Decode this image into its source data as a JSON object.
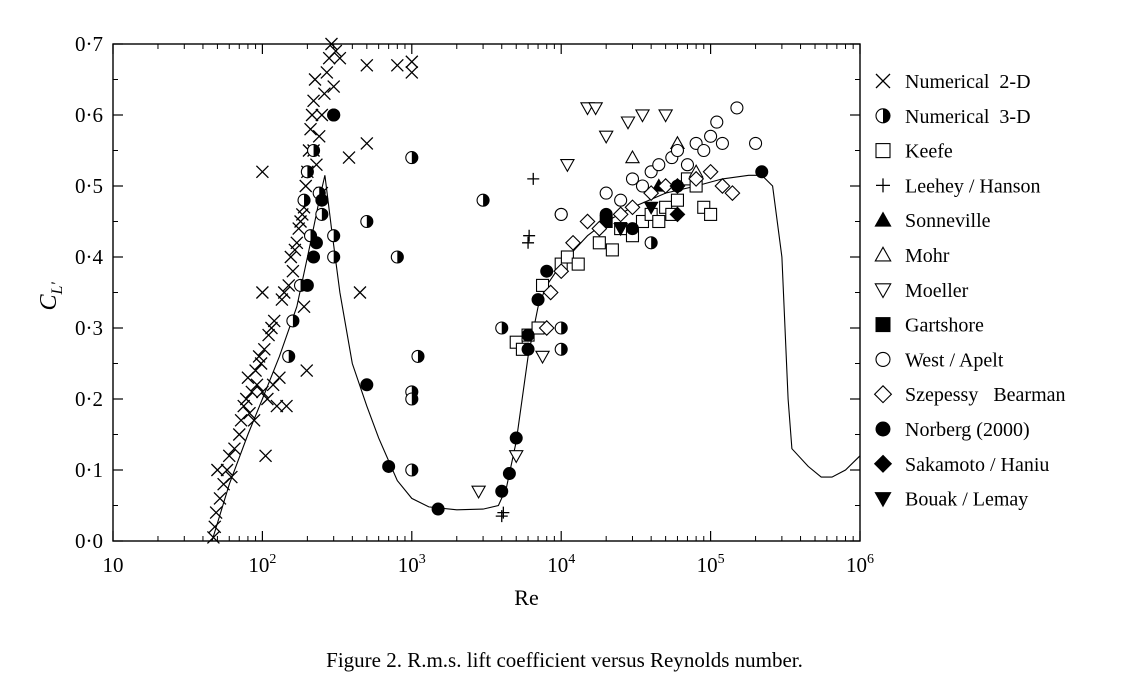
{
  "caption": "Figure 2.  R.m.s. lift coefficient versus Reynolds number.",
  "chart_data": {
    "type": "scatter",
    "title": "",
    "xlabel": "Re",
    "ylabel_main": "C",
    "ylabel_sub": "L'",
    "x_scale": "log",
    "xlim": [
      10,
      1000000
    ],
    "ylim": [
      0.0,
      0.7
    ],
    "x_ticks": [
      {
        "value": 10,
        "base": "10",
        "exp": ""
      },
      {
        "value": 100,
        "base": "10",
        "exp": "2"
      },
      {
        "value": 1000,
        "base": "10",
        "exp": "3"
      },
      {
        "value": 10000,
        "base": "10",
        "exp": "4"
      },
      {
        "value": 100000,
        "base": "10",
        "exp": "5"
      },
      {
        "value": 1000000,
        "base": "10",
        "exp": "6"
      }
    ],
    "y_ticks": [
      {
        "value": 0.0,
        "label": "0·0"
      },
      {
        "value": 0.1,
        "label": "0·1"
      },
      {
        "value": 0.2,
        "label": "0·2"
      },
      {
        "value": 0.3,
        "label": "0·3"
      },
      {
        "value": 0.4,
        "label": "0·4"
      },
      {
        "value": 0.5,
        "label": "0·5"
      },
      {
        "value": 0.6,
        "label": "0·6"
      },
      {
        "value": 0.7,
        "label": "0·7"
      }
    ],
    "grid": false,
    "legend_position": "right",
    "fit_curve": [
      [
        46,
        0.0
      ],
      [
        60,
        0.08
      ],
      [
        80,
        0.15
      ],
      [
        100,
        0.2
      ],
      [
        130,
        0.26
      ],
      [
        170,
        0.33
      ],
      [
        210,
        0.42
      ],
      [
        240,
        0.48
      ],
      [
        262,
        0.515
      ],
      [
        290,
        0.44
      ],
      [
        330,
        0.35
      ],
      [
        400,
        0.25
      ],
      [
        500,
        0.19
      ],
      [
        600,
        0.145
      ],
      [
        800,
        0.085
      ],
      [
        1000,
        0.06
      ],
      [
        1300,
        0.048
      ],
      [
        2000,
        0.044
      ],
      [
        3000,
        0.045
      ],
      [
        3800,
        0.05
      ],
      [
        4300,
        0.075
      ],
      [
        5000,
        0.14
      ],
      [
        6000,
        0.26
      ],
      [
        7000,
        0.33
      ],
      [
        8000,
        0.36
      ],
      [
        10000,
        0.39
      ],
      [
        15000,
        0.43
      ],
      [
        20000,
        0.45
      ],
      [
        30000,
        0.47
      ],
      [
        50000,
        0.49
      ],
      [
        80000,
        0.5
      ],
      [
        120000,
        0.51
      ],
      [
        180000,
        0.515
      ],
      [
        220000,
        0.515
      ],
      [
        260000,
        0.5
      ],
      [
        300000,
        0.4
      ],
      [
        330000,
        0.2
      ],
      [
        350000,
        0.13
      ],
      [
        450000,
        0.105
      ],
      [
        550000,
        0.09
      ],
      [
        650000,
        0.09
      ],
      [
        800000,
        0.1
      ],
      [
        1000000,
        0.12
      ]
    ],
    "series": [
      {
        "name": "Numerical  2-D",
        "marker": "x",
        "points": [
          [
            47,
            0.005
          ],
          [
            48,
            0.02
          ],
          [
            49,
            0.04
          ],
          [
            50,
            0.1
          ],
          [
            52,
            0.06
          ],
          [
            55,
            0.08
          ],
          [
            58,
            0.1
          ],
          [
            60,
            0.12
          ],
          [
            62,
            0.09
          ],
          [
            65,
            0.13
          ],
          [
            70,
            0.15
          ],
          [
            72,
            0.17
          ],
          [
            75,
            0.19
          ],
          [
            78,
            0.2
          ],
          [
            80,
            0.23
          ],
          [
            82,
            0.18
          ],
          [
            85,
            0.21
          ],
          [
            88,
            0.17
          ],
          [
            90,
            0.24
          ],
          [
            92,
            0.22
          ],
          [
            95,
            0.26
          ],
          [
            98,
            0.25
          ],
          [
            100,
            0.21
          ],
          [
            100,
            0.35
          ],
          [
            100,
            0.52
          ],
          [
            103,
            0.27
          ],
          [
            105,
            0.12
          ],
          [
            108,
            0.2
          ],
          [
            110,
            0.29
          ],
          [
            115,
            0.3
          ],
          [
            118,
            0.22
          ],
          [
            120,
            0.31
          ],
          [
            125,
            0.19
          ],
          [
            130,
            0.23
          ],
          [
            135,
            0.34
          ],
          [
            140,
            0.35
          ],
          [
            145,
            0.19
          ],
          [
            150,
            0.36
          ],
          [
            155,
            0.4
          ],
          [
            160,
            0.38
          ],
          [
            165,
            0.41
          ],
          [
            170,
            0.42
          ],
          [
            175,
            0.44
          ],
          [
            180,
            0.45
          ],
          [
            185,
            0.46
          ],
          [
            190,
            0.47
          ],
          [
            195,
            0.5
          ],
          [
            198,
            0.24
          ],
          [
            200,
            0.52
          ],
          [
            205,
            0.55
          ],
          [
            210,
            0.58
          ],
          [
            215,
            0.6
          ],
          [
            220,
            0.62
          ],
          [
            225,
            0.65
          ],
          [
            230,
            0.53
          ],
          [
            240,
            0.57
          ],
          [
            250,
            0.6
          ],
          [
            260,
            0.63
          ],
          [
            270,
            0.66
          ],
          [
            280,
            0.68
          ],
          [
            290,
            0.7
          ],
          [
            300,
            0.64
          ],
          [
            310,
            0.69
          ],
          [
            330,
            0.68
          ],
          [
            380,
            0.54
          ],
          [
            450,
            0.35
          ],
          [
            500,
            0.56
          ],
          [
            500,
            0.67
          ],
          [
            800,
            0.67
          ],
          [
            1000,
            0.66
          ],
          [
            1000,
            0.675
          ],
          [
            250,
            0.49
          ],
          [
            220,
            0.55
          ],
          [
            190,
            0.33
          ]
        ]
      },
      {
        "name": "Numerical  3-D",
        "marker": "half",
        "points": [
          [
            150,
            0.26
          ],
          [
            160,
            0.31
          ],
          [
            180,
            0.36
          ],
          [
            190,
            0.48
          ],
          [
            200,
            0.52
          ],
          [
            210,
            0.43
          ],
          [
            220,
            0.55
          ],
          [
            240,
            0.49
          ],
          [
            250,
            0.46
          ],
          [
            300,
            0.4
          ],
          [
            300,
            0.43
          ],
          [
            300,
            0.6
          ],
          [
            500,
            0.45
          ],
          [
            800,
            0.4
          ],
          [
            1000,
            0.54
          ],
          [
            1000,
            0.21
          ],
          [
            1000,
            0.2
          ],
          [
            1000,
            0.1
          ],
          [
            1100,
            0.26
          ],
          [
            3000,
            0.48
          ],
          [
            4000,
            0.3
          ],
          [
            10000,
            0.46
          ],
          [
            10000,
            0.3
          ],
          [
            10000,
            0.27
          ],
          [
            40000,
            0.42
          ]
        ]
      },
      {
        "name": "Keefe",
        "marker": "square",
        "points": [
          [
            5000,
            0.28
          ],
          [
            5500,
            0.27
          ],
          [
            6000,
            0.29
          ],
          [
            7000,
            0.3
          ],
          [
            7500,
            0.36
          ],
          [
            10000,
            0.39
          ],
          [
            11000,
            0.4
          ],
          [
            13000,
            0.39
          ],
          [
            18000,
            0.42
          ],
          [
            22000,
            0.41
          ],
          [
            25000,
            0.44
          ],
          [
            30000,
            0.43
          ],
          [
            35000,
            0.45
          ],
          [
            40000,
            0.46
          ],
          [
            45000,
            0.45
          ],
          [
            50000,
            0.47
          ],
          [
            55000,
            0.46
          ],
          [
            60000,
            0.48
          ],
          [
            70000,
            0.51
          ],
          [
            80000,
            0.5
          ],
          [
            90000,
            0.47
          ],
          [
            100000,
            0.46
          ]
        ]
      },
      {
        "name": "Leehey / Hanson",
        "marker": "plus",
        "points": [
          [
            4000,
            0.035
          ],
          [
            4100,
            0.04
          ],
          [
            6000,
            0.42
          ],
          [
            6100,
            0.43
          ],
          [
            6500,
            0.51
          ]
        ]
      },
      {
        "name": "Sonneville",
        "marker": "triangle-up-filled",
        "points": [
          [
            45000,
            0.5
          ]
        ]
      },
      {
        "name": "Mohr",
        "marker": "triangle-up",
        "points": [
          [
            30000,
            0.54
          ],
          [
            60000,
            0.56
          ],
          [
            80000,
            0.52
          ]
        ]
      },
      {
        "name": "Moeller",
        "marker": "triangle-down",
        "points": [
          [
            2800,
            0.07
          ],
          [
            5000,
            0.12
          ],
          [
            7500,
            0.26
          ],
          [
            11000,
            0.53
          ],
          [
            15000,
            0.61
          ],
          [
            17000,
            0.61
          ],
          [
            20000,
            0.57
          ],
          [
            28000,
            0.59
          ],
          [
            35000,
            0.6
          ],
          [
            50000,
            0.6
          ]
        ]
      },
      {
        "name": "Gartshore",
        "marker": "square-filled",
        "points": [
          [
            20000,
            0.45
          ]
        ]
      },
      {
        "name": "West / Apelt",
        "marker": "circle",
        "points": [
          [
            10000,
            0.46
          ],
          [
            20000,
            0.49
          ],
          [
            25000,
            0.48
          ],
          [
            30000,
            0.51
          ],
          [
            35000,
            0.5
          ],
          [
            40000,
            0.52
          ],
          [
            45000,
            0.53
          ],
          [
            55000,
            0.54
          ],
          [
            60000,
            0.55
          ],
          [
            70000,
            0.53
          ],
          [
            80000,
            0.56
          ],
          [
            90000,
            0.55
          ],
          [
            100000,
            0.57
          ],
          [
            110000,
            0.59
          ],
          [
            120000,
            0.56
          ],
          [
            150000,
            0.61
          ],
          [
            200000,
            0.56
          ]
        ]
      },
      {
        "name": "Szepessy   Bearman",
        "marker": "diamond",
        "points": [
          [
            8000,
            0.3
          ],
          [
            8500,
            0.35
          ],
          [
            10000,
            0.38
          ],
          [
            12000,
            0.42
          ],
          [
            15000,
            0.45
          ],
          [
            18000,
            0.44
          ],
          [
            25000,
            0.46
          ],
          [
            30000,
            0.47
          ],
          [
            40000,
            0.49
          ],
          [
            50000,
            0.5
          ],
          [
            60000,
            0.5
          ],
          [
            80000,
            0.51
          ],
          [
            100000,
            0.52
          ],
          [
            120000,
            0.5
          ],
          [
            140000,
            0.49
          ]
        ]
      },
      {
        "name": "Norberg (2000)",
        "marker": "circle-filled",
        "points": [
          [
            200,
            0.36
          ],
          [
            220,
            0.4
          ],
          [
            230,
            0.42
          ],
          [
            250,
            0.48
          ],
          [
            300,
            0.6
          ],
          [
            500,
            0.22
          ],
          [
            700,
            0.105
          ],
          [
            1500,
            0.045
          ],
          [
            4000,
            0.07
          ],
          [
            4500,
            0.095
          ],
          [
            5000,
            0.145
          ],
          [
            6000,
            0.27
          ],
          [
            6000,
            0.29
          ],
          [
            7000,
            0.34
          ],
          [
            8000,
            0.38
          ],
          [
            20000,
            0.46
          ],
          [
            30000,
            0.44
          ],
          [
            60000,
            0.5
          ],
          [
            220000,
            0.52
          ]
        ]
      },
      {
        "name": "Sakamoto / Haniu",
        "marker": "diamond-filled",
        "points": [
          [
            60000,
            0.46
          ]
        ]
      },
      {
        "name": "Bouak / Lemay",
        "marker": "triangle-down-filled",
        "points": [
          [
            25000,
            0.44
          ],
          [
            40000,
            0.47
          ]
        ]
      }
    ]
  }
}
